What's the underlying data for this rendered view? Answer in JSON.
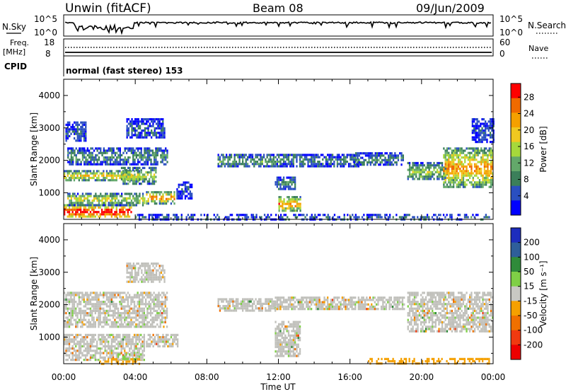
{
  "header": {
    "title": "Unwin (fitACF)",
    "beam": "Beam 08",
    "date": "09/Jun/2009"
  },
  "top_panels": {
    "nsky_label": "N.Sky",
    "nsky_ticks": [
      "10^5",
      "10^0"
    ],
    "nsearch_label": "N.Search",
    "nsearch_ticks": [
      "10^5",
      "10^0"
    ],
    "freq_label_1": "Freq.",
    "freq_label_2": "[MHz]",
    "freq_ticks": [
      "18",
      "8"
    ],
    "nave_label": "Nave",
    "nave_ticks": [
      "60",
      "0"
    ],
    "cpid_label": "CPID",
    "cpid_text": "normal (fast stereo) 153"
  },
  "colors": {
    "power": [
      "#0000ff",
      "#2a4fc0",
      "#3b7f5a",
      "#63a86a",
      "#a6d93b",
      "#f0c820",
      "#f5a000",
      "#f06a00",
      "#ff0000"
    ],
    "velocity": [
      "#1d2dbd",
      "#2e5e9a",
      "#2f8b3a",
      "#7fd046",
      "#c8c8c3",
      "#f5a000",
      "#f07000",
      "#f03a10",
      "#ee0000"
    ],
    "ground_scatter": "#c0c0bb"
  },
  "chart_data": [
    {
      "type": "heatmap",
      "name": "power",
      "ylabel": "Slant Range [km]",
      "xlabel": "",
      "xlim": [
        "00:00",
        "24:00"
      ],
      "ylim": [
        180,
        4500
      ],
      "yticks": [
        "1000",
        "2000",
        "3000",
        "4000"
      ],
      "xticks": [
        "00:00",
        "04:00",
        "08:00",
        "12:00",
        "16:00",
        "20:00",
        "00:00"
      ],
      "colorbar": {
        "label": "Power [dB]",
        "ticks": [
          "28",
          "24",
          "20",
          "16",
          "12",
          "8",
          "4"
        ],
        "range": [
          0,
          30
        ]
      },
      "regions": [
        {
          "t0": 0.0,
          "t1": 3.8,
          "r0": 250,
          "r1": 650,
          "value": 27
        },
        {
          "t0": 0.2,
          "t1": 4.5,
          "r0": 650,
          "r1": 1000,
          "value": 14
        },
        {
          "t0": 0.0,
          "t1": 4.2,
          "r0": 1400,
          "r1": 1700,
          "value": 17
        },
        {
          "t0": 0.2,
          "t1": 5.8,
          "r0": 1900,
          "r1": 2400,
          "value": 8
        },
        {
          "t0": 4.6,
          "t1": 6.2,
          "r0": 700,
          "r1": 1050,
          "value": 20
        },
        {
          "t0": 3.2,
          "t1": 5.2,
          "r0": 1300,
          "r1": 1800,
          "value": 13
        },
        {
          "t0": 0.1,
          "t1": 1.2,
          "r0": 2600,
          "r1": 3200,
          "value": 5
        },
        {
          "t0": 3.5,
          "t1": 5.6,
          "r0": 2700,
          "r1": 3300,
          "value": 5
        },
        {
          "t0": 6.3,
          "t1": 7.2,
          "r0": 850,
          "r1": 1350,
          "value": 4
        },
        {
          "t0": 8.6,
          "t1": 11.8,
          "r0": 1800,
          "r1": 2200,
          "value": 9
        },
        {
          "t0": 11.8,
          "t1": 12.9,
          "r0": 1100,
          "r1": 1500,
          "value": 8
        },
        {
          "t0": 12.0,
          "t1": 13.2,
          "r0": 450,
          "r1": 900,
          "value": 20
        },
        {
          "t0": 11.8,
          "t1": 16.5,
          "r0": 1850,
          "r1": 2200,
          "value": 8
        },
        {
          "t0": 16.2,
          "t1": 19.0,
          "r0": 1850,
          "r1": 2250,
          "value": 7
        },
        {
          "t0": 19.2,
          "t1": 21.5,
          "r0": 1400,
          "r1": 1950,
          "value": 12
        },
        {
          "t0": 21.2,
          "t1": 24.0,
          "r0": 1200,
          "r1": 2400,
          "value": 19
        },
        {
          "t0": 22.8,
          "t1": 24.0,
          "r0": 2600,
          "r1": 3300,
          "value": 4
        },
        {
          "t0": 4.0,
          "t1": 24.0,
          "r0": 180,
          "r1": 350,
          "value": 6
        }
      ]
    },
    {
      "type": "heatmap",
      "name": "velocity",
      "ylabel": "Slant Range [km]",
      "xlabel": "Time UT",
      "xlim": [
        "00:00",
        "24:00"
      ],
      "ylim": [
        180,
        4500
      ],
      "yticks": [
        "1000",
        "2000",
        "3000",
        "4000"
      ],
      "xticks": [
        "00:00",
        "04:00",
        "08:00",
        "12:00",
        "16:00",
        "20:00",
        "00:00"
      ],
      "colorbar": {
        "label": "Velocity [m s⁻¹]",
        "ticks": [
          "200",
          "100",
          "50",
          "15",
          "-15",
          "-50",
          "-100",
          "-200"
        ],
        "range": [
          -250,
          250
        ]
      },
      "regions": [
        {
          "t0": 0.0,
          "t1": 4.5,
          "r0": 300,
          "r1": 1100,
          "value": 0
        },
        {
          "t0": 0.0,
          "t1": 5.8,
          "r0": 1300,
          "r1": 2400,
          "value": 0
        },
        {
          "t0": 3.5,
          "t1": 5.6,
          "r0": 2700,
          "r1": 3300,
          "value": 0
        },
        {
          "t0": 4.6,
          "t1": 6.4,
          "r0": 700,
          "r1": 1100,
          "value": 0
        },
        {
          "t0": 8.6,
          "t1": 11.8,
          "r0": 1800,
          "r1": 2200,
          "value": 0
        },
        {
          "t0": 11.8,
          "t1": 13.2,
          "r0": 450,
          "r1": 1500,
          "value": 0
        },
        {
          "t0": 11.8,
          "t1": 19.0,
          "r0": 1850,
          "r1": 2250,
          "value": 0
        },
        {
          "t0": 19.2,
          "t1": 24.0,
          "r0": 1200,
          "r1": 2400,
          "value": 0
        },
        {
          "t0": 2.0,
          "t1": 4.3,
          "r0": 200,
          "r1": 350,
          "value": -60
        },
        {
          "t0": 17.0,
          "t1": 23.8,
          "r0": 200,
          "r1": 360,
          "value": -55
        },
        {
          "t0": 3.0,
          "t1": 4.5,
          "r0": 300,
          "r1": 500,
          "value": 35
        }
      ]
    }
  ]
}
